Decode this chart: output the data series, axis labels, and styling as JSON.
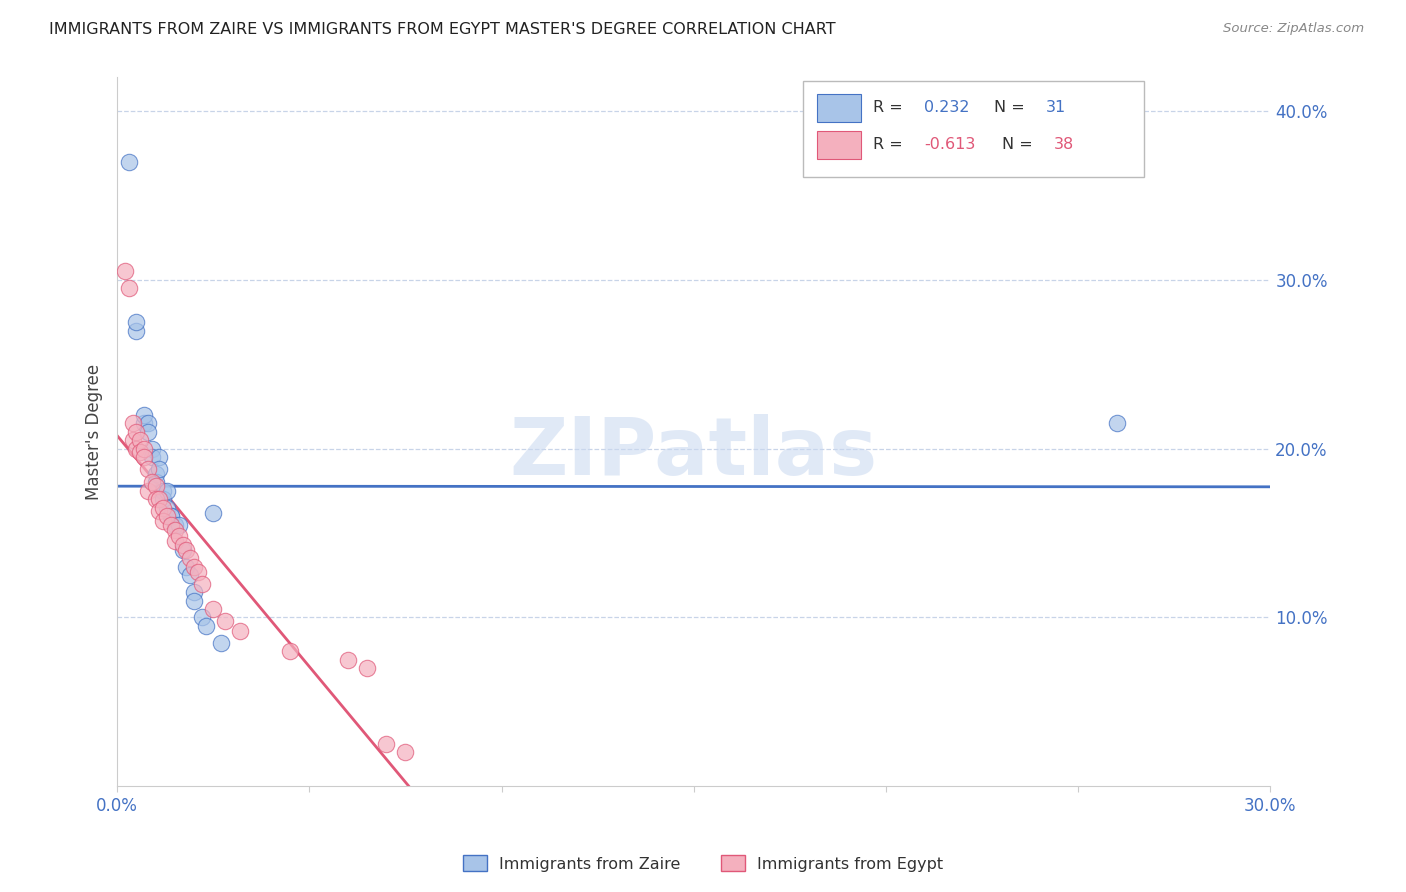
{
  "title": "IMMIGRANTS FROM ZAIRE VS IMMIGRANTS FROM EGYPT MASTER'S DEGREE CORRELATION CHART",
  "source": "Source: ZipAtlas.com",
  "ylabel": "Master's Degree",
  "x_min": 0.0,
  "x_max": 0.3,
  "y_min": 0.0,
  "y_max": 0.42,
  "y_ticks": [
    0.1,
    0.2,
    0.3,
    0.4
  ],
  "x_ticks": [
    0.0,
    0.05,
    0.1,
    0.15,
    0.2,
    0.25,
    0.3
  ],
  "watermark": "ZIPatlas",
  "zaire_R": "0.232",
  "zaire_N": "31",
  "egypt_R": "-0.613",
  "egypt_N": "38",
  "zaire_color": "#a8c4e8",
  "egypt_color": "#f4b0be",
  "zaire_line_color": "#4472c4",
  "egypt_line_color": "#e05878",
  "background_color": "#ffffff",
  "grid_color": "#c8d4e8",
  "zaire_x": [
    0.003,
    0.005,
    0.005,
    0.007,
    0.007,
    0.008,
    0.008,
    0.009,
    0.009,
    0.01,
    0.01,
    0.011,
    0.011,
    0.012,
    0.012,
    0.013,
    0.013,
    0.014,
    0.014,
    0.015,
    0.016,
    0.017,
    0.018,
    0.019,
    0.02,
    0.02,
    0.022,
    0.023,
    0.025,
    0.027,
    0.26
  ],
  "zaire_y": [
    0.37,
    0.27,
    0.275,
    0.215,
    0.22,
    0.215,
    0.21,
    0.2,
    0.195,
    0.185,
    0.18,
    0.195,
    0.188,
    0.175,
    0.17,
    0.175,
    0.165,
    0.16,
    0.16,
    0.155,
    0.155,
    0.14,
    0.13,
    0.125,
    0.115,
    0.11,
    0.1,
    0.095,
    0.162,
    0.085,
    0.215
  ],
  "egypt_x": [
    0.002,
    0.003,
    0.004,
    0.004,
    0.005,
    0.005,
    0.006,
    0.006,
    0.007,
    0.007,
    0.008,
    0.008,
    0.009,
    0.01,
    0.01,
    0.011,
    0.011,
    0.012,
    0.012,
    0.013,
    0.014,
    0.015,
    0.015,
    0.016,
    0.017,
    0.018,
    0.019,
    0.02,
    0.021,
    0.022,
    0.025,
    0.028,
    0.032,
    0.045,
    0.06,
    0.065,
    0.07,
    0.075
  ],
  "egypt_y": [
    0.305,
    0.295,
    0.215,
    0.205,
    0.21,
    0.2,
    0.205,
    0.198,
    0.2,
    0.195,
    0.188,
    0.175,
    0.18,
    0.178,
    0.17,
    0.17,
    0.163,
    0.165,
    0.157,
    0.16,
    0.155,
    0.152,
    0.145,
    0.148,
    0.143,
    0.14,
    0.135,
    0.13,
    0.127,
    0.12,
    0.105,
    0.098,
    0.092,
    0.08,
    0.075,
    0.07,
    0.025,
    0.02
  ],
  "legend_zaire_label": "Immigrants from Zaire",
  "legend_egypt_label": "Immigrants from Egypt"
}
